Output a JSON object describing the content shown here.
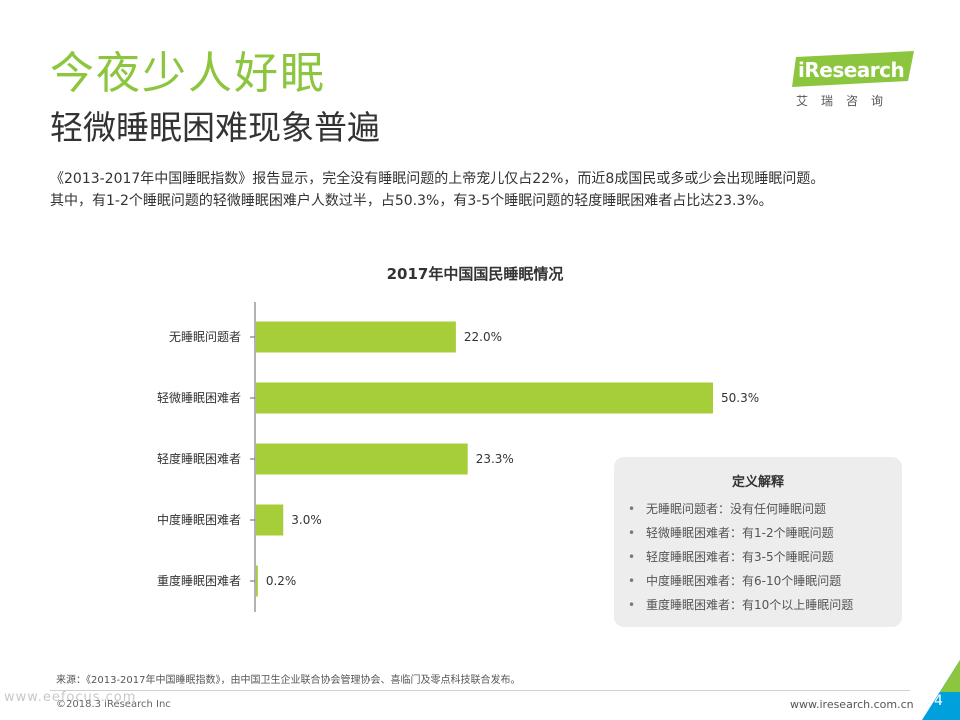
{
  "header": {
    "title": "今夜少人好眠",
    "subtitle": "轻微睡眠困难现象普遍"
  },
  "logo": {
    "name": "iResearch",
    "chinese": "艾瑞咨询"
  },
  "intro": {
    "line1": "《2013-2017年中国睡眠指数》报告显示，完全没有睡眠问题的上帝宠儿仅占22%，而近8成国民或多或少会出现睡眠问题。",
    "line2": "其中，有1-2个睡眠问题的轻微睡眠困难户人数过半，占50.3%，有3-5个睡眠问题的轻度睡眠困难者占比达23.3%。"
  },
  "chart_data": {
    "type": "bar",
    "orientation": "horizontal",
    "title": "2017年中国国民睡眠情况",
    "categories": [
      "无睡眠问题者",
      "轻微睡眠困难者",
      "轻度睡眠困难者",
      "中度睡眠困难者",
      "重度睡眠困难者"
    ],
    "values": [
      22.0,
      50.3,
      23.3,
      3.0,
      0.2
    ],
    "labels": [
      "22.0%",
      "50.3%",
      "23.3%",
      "3.0%",
      "0.2%"
    ],
    "unit": "%",
    "xlim": [
      0,
      55
    ],
    "color": "#a6ce39",
    "grid": false,
    "xlabel": "",
    "ylabel": ""
  },
  "definitions": {
    "title": "定义解释",
    "items": [
      "无睡眠问题者：没有任何睡眠问题",
      "轻微睡眠困难者：有1-2个睡眠问题",
      "轻度睡眠困难者：有3-5个睡眠问题",
      "中度睡眠困难者：有6-10个睡眠问题",
      "重度睡眠困难者：有10个以上睡眠问题"
    ]
  },
  "footer": {
    "source": "来源：《2013-2017年中国睡眠指数》，由中国卫生企业联合协会管理协会、喜临门及零点科技联合发布。",
    "copyright": "©2018.3 iResearch Inc",
    "watermark": "www.eefocus.com",
    "website": "www.iresearch.com.cn",
    "page": "4"
  },
  "colors": {
    "brand_green": "#8cc63f",
    "bar": "#a6ce39",
    "corner_blue": "#00a0dc"
  }
}
